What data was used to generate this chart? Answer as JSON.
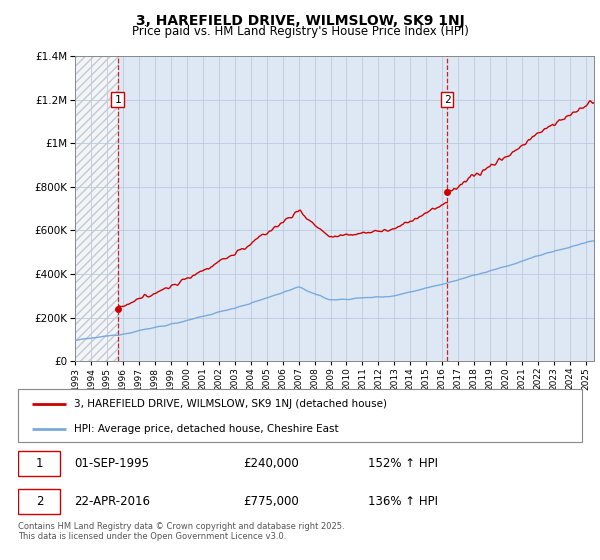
{
  "title": "3, HAREFIELD DRIVE, WILMSLOW, SK9 1NJ",
  "subtitle": "Price paid vs. HM Land Registry's House Price Index (HPI)",
  "ylim": [
    0,
    1400000
  ],
  "yticks": [
    0,
    200000,
    400000,
    600000,
    800000,
    1000000,
    1200000,
    1400000
  ],
  "sale1": {
    "date": "01-SEP-1995",
    "price": 240000,
    "hpi_change": "152% ↑ HPI",
    "label": "1",
    "year": 1995.67
  },
  "sale2": {
    "date": "22-APR-2016",
    "price": 775000,
    "hpi_change": "136% ↑ HPI",
    "label": "2",
    "year": 2016.31
  },
  "legend_line1": "3, HAREFIELD DRIVE, WILMSLOW, SK9 1NJ (detached house)",
  "legend_line2": "HPI: Average price, detached house, Cheshire East",
  "footer": "Contains HM Land Registry data © Crown copyright and database right 2025.\nThis data is licensed under the Open Government Licence v3.0.",
  "property_color": "#cc0000",
  "hpi_color": "#7aaadd",
  "background_color": "#dde8f4",
  "grid_color": "#bbccdd",
  "vline_color": "#cc0000",
  "xlim_start": 1993,
  "xlim_end": 2025.5
}
